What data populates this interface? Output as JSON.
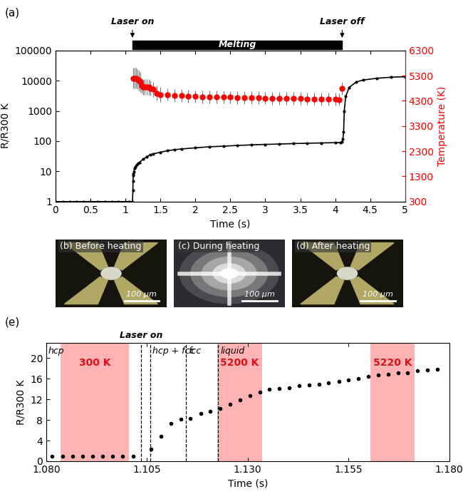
{
  "chart_data": [
    {
      "panel": "(a)",
      "type": "scatter",
      "xlabel": "Time (s)",
      "ylabel": "R/R300 K",
      "y2label": "Temperature (K)",
      "log": "y",
      "xlim": [
        0,
        5
      ],
      "xticks": [
        0,
        0.5,
        1,
        1.5,
        2,
        2.5,
        3,
        3.5,
        4,
        4.5,
        5
      ],
      "ylim": [
        1,
        100000
      ],
      "yticks": [
        1,
        10,
        100,
        1000,
        10000,
        100000
      ],
      "y2lim": [
        300,
        6300
      ],
      "y2ticks": [
        300,
        1300,
        2300,
        3300,
        4300,
        5300,
        6300
      ],
      "series": [
        {
          "name": "R/R300 K",
          "color": "#000000",
          "marker": "circle",
          "line_style": "solid",
          "x": [
            0,
            0.1,
            0.2,
            0.3,
            0.4,
            0.5,
            0.6,
            0.7,
            0.8,
            0.9,
            1.0,
            1.05,
            1.1,
            1.106,
            1.108,
            1.111,
            1.115,
            1.12,
            1.13,
            1.14,
            1.16,
            1.18,
            1.2,
            1.25,
            1.3,
            1.35,
            1.4,
            1.5,
            1.6,
            1.7,
            1.8,
            2.0,
            2.2,
            2.4,
            2.6,
            2.8,
            3.0,
            3.2,
            3.4,
            3.6,
            3.8,
            4.0,
            4.08,
            4.1,
            4.11,
            4.12,
            4.13,
            4.15,
            4.2,
            4.3,
            4.4,
            4.6,
            4.8,
            5.0
          ],
          "values": [
            1,
            1,
            1,
            1,
            1,
            1,
            1,
            1,
            1,
            1,
            1,
            1,
            1,
            2.3,
            4.8,
            7.3,
            8.3,
            9.5,
            12.5,
            14.5,
            16.5,
            18.5,
            20,
            25,
            30,
            35,
            38,
            43,
            48,
            52,
            55,
            60,
            65,
            68,
            72,
            75,
            78,
            80,
            83,
            85,
            87,
            89,
            90,
            95,
            120,
            200,
            1000,
            3000,
            6000,
            9000,
            10500,
            12000,
            13000,
            13500
          ]
        },
        {
          "name": "Temperature (K)",
          "axis": "y2",
          "color": "#ff0000",
          "marker": "circle",
          "line_style": "none",
          "x": [
            1.11,
            1.13,
            1.15,
            1.17,
            1.19,
            1.21,
            1.23,
            1.25,
            1.27,
            1.3,
            1.33,
            1.36,
            1.4,
            1.45,
            1.5,
            1.6,
            1.7,
            1.8,
            1.9,
            2.0,
            2.1,
            2.2,
            2.3,
            2.4,
            2.5,
            2.6,
            2.7,
            2.8,
            2.9,
            3.0,
            3.1,
            3.2,
            3.3,
            3.4,
            3.5,
            3.6,
            3.7,
            3.8,
            3.9,
            4.0,
            4.05,
            4.1
          ],
          "values": [
            5200,
            5200,
            5200,
            5150,
            5100,
            5050,
            4900,
            4850,
            4850,
            4850,
            4850,
            4800,
            4750,
            4600,
            4550,
            4550,
            4500,
            4500,
            4480,
            4470,
            4460,
            4460,
            4450,
            4440,
            4440,
            4430,
            4430,
            4420,
            4420,
            4410,
            4400,
            4400,
            4400,
            4390,
            4390,
            4380,
            4380,
            4370,
            4370,
            4360,
            4350,
            4800
          ],
          "errors": [
            400,
            400,
            400,
            400,
            400,
            400,
            300,
            300,
            300,
            300,
            300,
            300,
            300,
            300,
            300,
            250,
            250,
            250,
            250,
            250,
            250,
            250,
            250,
            250,
            250,
            250,
            250,
            250,
            250,
            250,
            250,
            250,
            250,
            250,
            250,
            250,
            250,
            250,
            250,
            250,
            250,
            250
          ]
        }
      ],
      "annotations": [
        {
          "text": "Laser on",
          "x": 1.1
        },
        {
          "text": "Laser off",
          "x": 4.1
        }
      ],
      "bands": [
        {
          "label": "Melting",
          "start": 1.1,
          "end": 4.1,
          "color": "#000000"
        }
      ]
    },
    {
      "panel": "(e)",
      "type": "scatter",
      "xlabel": "Time (s)",
      "ylabel": "R/R300 K",
      "xlim": [
        1.08,
        1.18
      ],
      "xticks": [
        {
          "value": 1.08,
          "label": "1.080"
        },
        {
          "value": 1.105,
          "label": "1.105"
        },
        {
          "value": 1.13,
          "label": "1.130"
        },
        {
          "value": 1.155,
          "label": "1.155"
        },
        {
          "value": 1.18,
          "label": "1.180"
        }
      ],
      "ylim": [
        0,
        23
      ],
      "yticks": [
        0,
        4,
        8,
        12,
        16,
        20
      ],
      "series": [
        {
          "name": "R/R300 K",
          "color": "#000000",
          "marker": "circle",
          "line_style": "none",
          "x": [
            1.0815,
            1.084,
            1.0865,
            1.089,
            1.0915,
            1.094,
            1.0965,
            1.099,
            1.1015,
            1.106,
            1.1085,
            1.1109,
            1.1134,
            1.1158,
            1.1183,
            1.1207,
            1.1232,
            1.1256,
            1.1281,
            1.1305,
            1.133,
            1.1354,
            1.1379,
            1.1403,
            1.1428,
            1.1452,
            1.1477,
            1.1501,
            1.1526,
            1.155,
            1.1575,
            1.1599,
            1.1624,
            1.1648,
            1.1673,
            1.1697,
            1.1722,
            1.1746,
            1.1771
          ],
          "values": [
            1.0,
            1.0,
            1.0,
            1.0,
            1.0,
            1.0,
            1.0,
            1.0,
            1.0,
            2.3,
            4.8,
            7.3,
            8.2,
            8.3,
            9.2,
            9.7,
            10.3,
            11.1,
            11.9,
            12.7,
            13.4,
            13.9,
            14.1,
            14.3,
            14.6,
            14.8,
            15.0,
            15.2,
            15.5,
            15.8,
            16.1,
            16.4,
            16.7,
            16.9,
            17.1,
            17.2,
            17.5,
            17.7,
            17.9
          ]
        }
      ],
      "annotations": [
        {
          "text": "Laser on",
          "x": 1.1035
        }
      ],
      "regions": [
        {
          "label": "300 K",
          "start": 1.0835,
          "end": 1.1005,
          "color": "#ffb3b3"
        },
        {
          "label": "5200 K",
          "start": 1.1225,
          "end": 1.1335,
          "color": "#ffb3b3"
        },
        {
          "label": "5220 K",
          "start": 1.1605,
          "end": 1.1715,
          "color": "#ffb3b3"
        }
      ],
      "phases": [
        {
          "label": "hcp",
          "start": 1.08,
          "end": 1.1058
        },
        {
          "label": "hcp + fcc",
          "start": 1.1058,
          "end": 1.1147
        },
        {
          "label": "fcc",
          "start": 1.1147,
          "end": 1.1227
        },
        {
          "label": "liquid",
          "start": 1.1227,
          "end": 1.18
        }
      ]
    }
  ],
  "images": [
    {
      "panel": "(b)",
      "caption": "Before heating",
      "scale_bar": "100 μm"
    },
    {
      "panel": "(c)",
      "caption": "During heating",
      "scale_bar": "100 μm"
    },
    {
      "panel": "(d)",
      "caption": "After heating",
      "scale_bar": "100 μm"
    }
  ]
}
